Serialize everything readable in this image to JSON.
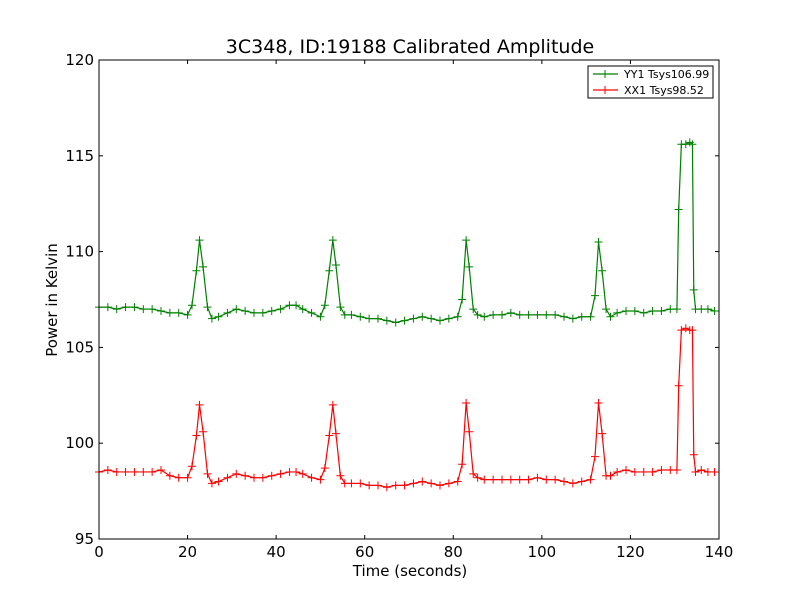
{
  "chart_data": {
    "type": "line",
    "title": "3C348, ID:19188 Calibrated Amplitude",
    "xlabel": "Time (seconds)",
    "ylabel": "Power in Kelvin",
    "xlim": [
      0,
      140
    ],
    "ylim": [
      95,
      120
    ],
    "xticks": [
      "0",
      "20",
      "40",
      "60",
      "80",
      "100",
      "120",
      "140"
    ],
    "yticks": [
      "95",
      "100",
      "105",
      "110",
      "115",
      "120"
    ],
    "grid": false,
    "legend_position": "top-right",
    "marker": "+",
    "series": [
      {
        "name": "YY1 Tsys106.99",
        "color": "#008000",
        "x": [
          0,
          2,
          4,
          6,
          8,
          10,
          12,
          14,
          16,
          18,
          20,
          21,
          22,
          22.7,
          23.5,
          24.5,
          25.5,
          27,
          29,
          31,
          33,
          35,
          37,
          39,
          41,
          43,
          44.5,
          46,
          48,
          50,
          51,
          52,
          52.8,
          53.5,
          54.5,
          55.5,
          57,
          59,
          61,
          63,
          65,
          67,
          69,
          71,
          73,
          75,
          77,
          79,
          81,
          82,
          82.9,
          83.6,
          84.5,
          85.5,
          87,
          89,
          91,
          93,
          95,
          97,
          99,
          101,
          103,
          105,
          107,
          109,
          111,
          112,
          112.8,
          113.6,
          114.5,
          115.5,
          117,
          119,
          121,
          123,
          125,
          127,
          129,
          130.5,
          130.9,
          131.5,
          132.5,
          133.4,
          134,
          134.3,
          134.7,
          136,
          137.5,
          139
        ],
        "y": [
          107.1,
          107.1,
          107.0,
          107.1,
          107.1,
          107.0,
          107.0,
          106.9,
          106.8,
          106.8,
          106.7,
          107.2,
          109.0,
          110.6,
          109.2,
          107.1,
          106.5,
          106.6,
          106.8,
          107.0,
          106.9,
          106.8,
          106.8,
          106.9,
          107.0,
          107.2,
          107.2,
          107.0,
          106.8,
          106.6,
          107.2,
          109.0,
          110.6,
          109.3,
          107.1,
          106.7,
          106.7,
          106.6,
          106.5,
          106.5,
          106.4,
          106.3,
          106.4,
          106.5,
          106.6,
          106.5,
          106.4,
          106.5,
          106.6,
          107.5,
          110.6,
          109.2,
          107.0,
          106.7,
          106.6,
          106.7,
          106.7,
          106.8,
          106.7,
          106.7,
          106.7,
          106.7,
          106.7,
          106.6,
          106.5,
          106.6,
          106.6,
          107.7,
          110.5,
          109.0,
          107.0,
          106.6,
          106.8,
          106.9,
          106.9,
          106.8,
          106.9,
          106.9,
          107.0,
          107.0,
          112.2,
          115.6,
          115.6,
          115.7,
          115.6,
          108.0,
          107.0,
          107.0,
          107.0,
          106.9
        ]
      },
      {
        "name": "XX1 Tsys98.52",
        "color": "#ff0000",
        "x": [
          0,
          2,
          4,
          6,
          8,
          10,
          12,
          14,
          16,
          18,
          20,
          21,
          22,
          22.7,
          23.5,
          24.5,
          25.5,
          27,
          29,
          31,
          33,
          35,
          37,
          39,
          41,
          43,
          44.5,
          46,
          48,
          50,
          51,
          52,
          52.8,
          53.5,
          54.5,
          55.5,
          57,
          59,
          61,
          63,
          65,
          67,
          69,
          71,
          73,
          75,
          77,
          79,
          81,
          82,
          82.9,
          83.6,
          84.5,
          85.5,
          87,
          89,
          91,
          93,
          95,
          97,
          99,
          101,
          103,
          105,
          107,
          109,
          111,
          112,
          112.8,
          113.6,
          114.5,
          115.5,
          117,
          119,
          121,
          123,
          125,
          127,
          129,
          130.5,
          130.9,
          131.5,
          132.5,
          133.4,
          134,
          134.3,
          134.7,
          136,
          137.5,
          139
        ],
        "y": [
          98.5,
          98.6,
          98.5,
          98.5,
          98.5,
          98.5,
          98.5,
          98.6,
          98.3,
          98.2,
          98.2,
          98.8,
          100.4,
          102.0,
          100.6,
          98.4,
          97.9,
          98.0,
          98.2,
          98.4,
          98.3,
          98.2,
          98.2,
          98.3,
          98.4,
          98.5,
          98.5,
          98.4,
          98.2,
          98.1,
          98.7,
          100.4,
          102.0,
          100.5,
          98.3,
          97.9,
          97.9,
          97.9,
          97.8,
          97.8,
          97.7,
          97.8,
          97.8,
          97.9,
          98.0,
          97.9,
          97.8,
          97.9,
          98.0,
          98.9,
          102.1,
          100.6,
          98.4,
          98.2,
          98.1,
          98.1,
          98.1,
          98.1,
          98.1,
          98.1,
          98.2,
          98.1,
          98.1,
          98.0,
          97.9,
          98.0,
          98.1,
          99.3,
          102.1,
          100.5,
          98.3,
          98.3,
          98.5,
          98.6,
          98.5,
          98.5,
          98.5,
          98.6,
          98.6,
          98.6,
          103.0,
          105.9,
          106.0,
          105.9,
          105.9,
          99.4,
          98.5,
          98.6,
          98.5,
          98.5
        ]
      }
    ]
  }
}
